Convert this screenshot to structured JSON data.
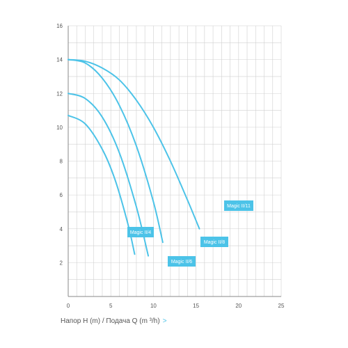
{
  "chart_data": {
    "type": "line",
    "title": "",
    "xlabel": "",
    "ylabel": "",
    "xlim": [
      0,
      25
    ],
    "ylim": [
      0,
      16
    ],
    "x_ticks": [
      0,
      5,
      10,
      15,
      20,
      25
    ],
    "y_ticks": [
      2,
      4,
      6,
      8,
      10,
      12,
      14,
      16
    ],
    "grid": true,
    "curve_color": "#4cc3e8",
    "label_bg": "#4cc3e8",
    "series": [
      {
        "name": "Magic II/4",
        "x": [
          0,
          2,
          4,
          5.5,
          7,
          7.8
        ],
        "y": [
          10.7,
          10.2,
          8.7,
          6.9,
          4.3,
          2.5
        ]
      },
      {
        "name": "Magic II/6",
        "x": [
          0,
          2,
          4,
          6,
          8,
          9.4
        ],
        "y": [
          12.0,
          11.7,
          10.6,
          8.5,
          5.3,
          2.4
        ]
      },
      {
        "name": "Magic II/8",
        "x": [
          0,
          2,
          4,
          6,
          8,
          10,
          11.1
        ],
        "y": [
          14.0,
          13.8,
          12.9,
          11.3,
          8.9,
          5.6,
          3.2
        ]
      },
      {
        "name": "Magic II/11",
        "x": [
          0,
          2,
          4,
          6,
          8,
          10,
          12,
          14,
          15.4
        ],
        "y": [
          14.0,
          13.9,
          13.5,
          12.8,
          11.6,
          10.0,
          8.0,
          5.7,
          4.0
        ]
      }
    ]
  },
  "axis_caption": {
    "text": "Напор H (m)  /  Подача Q (m ³/h)",
    "arrow": ">"
  }
}
